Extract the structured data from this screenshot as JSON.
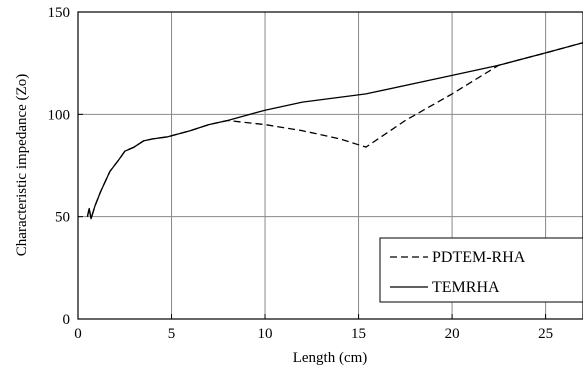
{
  "chart_data": {
    "type": "line",
    "title": "",
    "xlabel": "Length (cm)",
    "ylabel": "Characteristic impedance (Zo)",
    "xlim": [
      0,
      27
    ],
    "ylim": [
      0,
      150
    ],
    "x_ticks": [
      0,
      5,
      10,
      15,
      20,
      25
    ],
    "y_ticks": [
      0,
      50,
      100,
      150
    ],
    "grid": true,
    "legend_position": "bottom-right",
    "series": [
      {
        "name": "PDTEM-RHA",
        "style": "dashed",
        "color": "#000000",
        "points": [
          [
            0.5,
            50
          ],
          [
            0.6,
            54
          ],
          [
            0.7,
            49
          ],
          [
            0.9,
            55
          ],
          [
            1.2,
            62
          ],
          [
            1.7,
            72
          ],
          [
            2.2,
            78
          ],
          [
            2.5,
            82
          ],
          [
            3.0,
            84
          ],
          [
            3.5,
            87
          ],
          [
            4.0,
            88
          ],
          [
            4.8,
            89
          ],
          [
            6.0,
            92
          ],
          [
            7.0,
            95
          ],
          [
            8.0,
            97
          ],
          [
            10.0,
            95
          ],
          [
            12.0,
            92
          ],
          [
            14.0,
            88
          ],
          [
            15.4,
            84
          ],
          [
            17.5,
            97
          ],
          [
            20.0,
            110
          ],
          [
            22.5,
            124
          ],
          [
            25.0,
            130
          ],
          [
            27.0,
            135
          ]
        ]
      },
      {
        "name": "TEMRHA",
        "style": "solid",
        "color": "#000000",
        "points": [
          [
            0.5,
            50
          ],
          [
            0.6,
            54
          ],
          [
            0.7,
            49
          ],
          [
            0.9,
            55
          ],
          [
            1.2,
            62
          ],
          [
            1.7,
            72
          ],
          [
            2.2,
            78
          ],
          [
            2.5,
            82
          ],
          [
            3.0,
            84
          ],
          [
            3.5,
            87
          ],
          [
            4.0,
            88
          ],
          [
            4.8,
            89
          ],
          [
            6.0,
            92
          ],
          [
            7.0,
            95
          ],
          [
            8.0,
            97
          ],
          [
            10.0,
            102
          ],
          [
            12.0,
            106
          ],
          [
            15.4,
            110
          ],
          [
            20.0,
            119
          ],
          [
            22.5,
            124
          ],
          [
            25.0,
            130
          ],
          [
            27.0,
            135
          ]
        ]
      }
    ]
  }
}
